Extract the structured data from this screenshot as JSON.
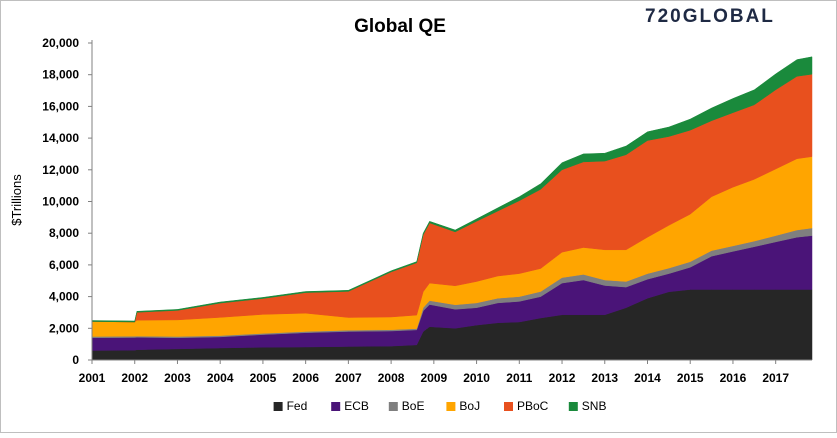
{
  "logo_text": "720GLOBAL",
  "chart_data": {
    "type": "area",
    "stacked": true,
    "title": "Global QE",
    "xlabel": "",
    "ylabel": "$Trillions",
    "ylim": [
      0,
      20000
    ],
    "yticks": [
      "0",
      "2,000",
      "4,000",
      "6,000",
      "8,000",
      "10,000",
      "12,000",
      "14,000",
      "16,000",
      "18,000",
      "20,000"
    ],
    "xlim": [
      2001.0,
      2017.85
    ],
    "xticks": [
      "2001",
      "2002",
      "2003",
      "2004",
      "2005",
      "2006",
      "2007",
      "2008",
      "2009",
      "2010",
      "2011",
      "2012",
      "2013",
      "2014",
      "2015",
      "2016",
      "2017"
    ],
    "grid": false,
    "legend_position": "bottom",
    "x": [
      2001.0,
      2002.0,
      2002.05,
      2003.0,
      2004.0,
      2005.0,
      2006.0,
      2007.0,
      2008.0,
      2008.6,
      2008.75,
      2008.9,
      2009.5,
      2010.0,
      2010.5,
      2011.0,
      2011.5,
      2012.0,
      2012.5,
      2013.0,
      2013.5,
      2014.0,
      2014.5,
      2015.0,
      2015.5,
      2016.0,
      2016.5,
      2017.0,
      2017.5,
      2017.85
    ],
    "series": [
      {
        "name": "Fed",
        "color": "#262626",
        "values": [
          600,
          620,
          650,
          700,
          760,
          800,
          820,
          850,
          880,
          950,
          1800,
          2100,
          2000,
          2200,
          2350,
          2400,
          2650,
          2850,
          2850,
          2850,
          3300,
          3900,
          4300,
          4450,
          4450,
          4450,
          4450,
          4450,
          4450,
          4450
        ]
      },
      {
        "name": "ECB",
        "color": "#4a1478",
        "values": [
          800,
          800,
          780,
          700,
          700,
          800,
          900,
          950,
          950,
          950,
          1300,
          1400,
          1200,
          1100,
          1250,
          1300,
          1350,
          2000,
          2200,
          1850,
          1300,
          1200,
          1150,
          1400,
          2100,
          2400,
          2700,
          3000,
          3300,
          3400
        ]
      },
      {
        "name": "BoE",
        "color": "#7f7f7f",
        "values": [
          80,
          80,
          80,
          80,
          80,
          80,
          80,
          80,
          80,
          80,
          200,
          250,
          280,
          300,
          300,
          300,
          320,
          350,
          350,
          350,
          350,
          350,
          350,
          350,
          350,
          350,
          350,
          400,
          450,
          480
        ]
      },
      {
        "name": "BoJ",
        "color": "#ffa500",
        "values": [
          950,
          900,
          1000,
          1050,
          1150,
          1200,
          1150,
          800,
          800,
          850,
          1000,
          1100,
          1200,
          1350,
          1400,
          1450,
          1450,
          1600,
          1700,
          1900,
          2000,
          2300,
          2700,
          3000,
          3400,
          3700,
          3900,
          4200,
          4500,
          4500
        ]
      },
      {
        "name": "PBoC",
        "color": "#e8501e",
        "values": [
          0,
          0,
          500,
          600,
          900,
          1000,
          1300,
          1650,
          2850,
          3300,
          3600,
          3800,
          3400,
          3800,
          4100,
          4600,
          5000,
          5200,
          5400,
          5600,
          6000,
          6100,
          5600,
          5300,
          4800,
          4700,
          4700,
          5000,
          5200,
          5200
        ]
      },
      {
        "name": "SNB",
        "color": "#1a8a3c",
        "values": [
          60,
          60,
          60,
          60,
          70,
          70,
          70,
          70,
          70,
          80,
          100,
          100,
          120,
          150,
          200,
          250,
          350,
          450,
          500,
          500,
          550,
          550,
          600,
          700,
          800,
          900,
          950,
          1000,
          1050,
          1100
        ]
      }
    ]
  }
}
